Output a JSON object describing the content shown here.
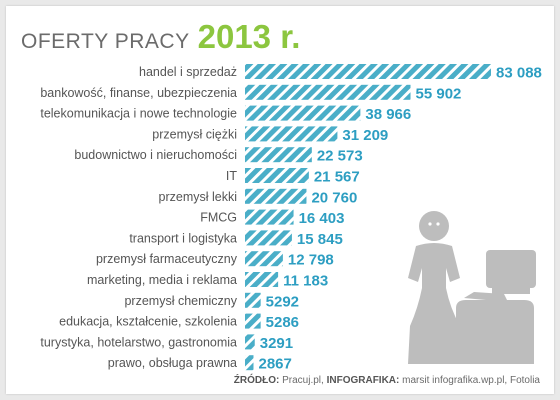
{
  "header": {
    "title": "OFERTY PRACY",
    "year": "2013 r."
  },
  "colors": {
    "bar": "#4aaec8",
    "stripe": "#ffffff",
    "value": "#2d9ec2",
    "label": "#555555",
    "year": "#8cc63f",
    "figure": "#bdbdbd"
  },
  "chart_data": {
    "type": "bar",
    "orientation": "horizontal",
    "title": "OFERTY PRACY 2013 r.",
    "categories": [
      "handel i sprzedaż",
      "bankowość, finanse, ubezpieczenia",
      "telekomunikacja i nowe technologie",
      "przemysł ciężki",
      "budownictwo i nieruchomości",
      "IT",
      "przemysł lekki",
      "FMCG",
      "transport i logistyka",
      "przemysł farmaceutyczny",
      "marketing, media i reklama",
      "przemysł chemiczny",
      "edukacja, kształcenie, szkolenia",
      "turystyka, hotelarstwo, gastronomia",
      "prawo, obsługa prawna"
    ],
    "values": [
      83088,
      55902,
      38966,
      31209,
      22573,
      21567,
      20760,
      16403,
      15845,
      12798,
      11183,
      5292,
      5286,
      3291,
      2867
    ],
    "value_labels": [
      "83 088",
      "55 902",
      "38 966",
      "31 209",
      "22 573",
      "21 567",
      "20 760",
      "16 403",
      "15 845",
      "12 798",
      "11 183",
      "5292",
      "5286",
      "3291",
      "2867"
    ],
    "xlim": [
      0,
      83088
    ],
    "grid": false,
    "legend": "none"
  },
  "source": {
    "label": "ŹRÓDŁO:",
    "text": "Pracuj.pl,",
    "label2": "INFOGRAFIKA:",
    "text2": "marsit infografika.wp.pl, Fotolia"
  }
}
